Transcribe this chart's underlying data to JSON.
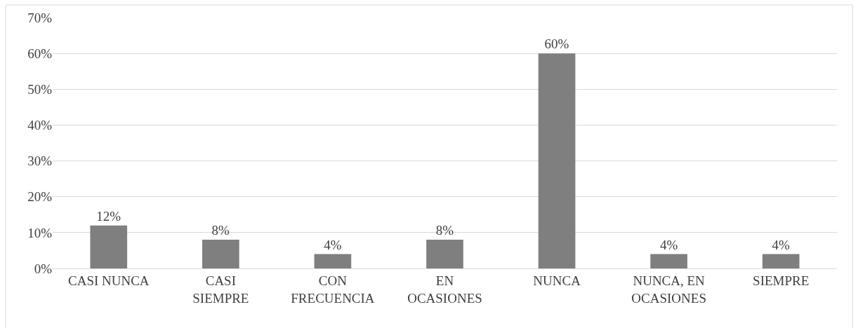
{
  "chart_data": {
    "type": "bar",
    "categories": [
      "CASI NUNCA",
      "CASI SIEMPRE",
      "CON FRECUENCIA",
      "EN OCASIONES",
      "NUNCA",
      "NUNCA, EN OCASIONES",
      "SIEMPRE"
    ],
    "values": [
      12,
      8,
      4,
      8,
      60,
      4,
      4
    ],
    "value_labels": [
      "12%",
      "8%",
      "4%",
      "8%",
      "60%",
      "4%",
      "4%"
    ],
    "color": "#7f7f7f",
    "ylim": [
      0,
      70
    ],
    "yticks": [
      {
        "value": 0,
        "label": "0%"
      },
      {
        "value": 10,
        "label": "10%"
      },
      {
        "value": 20,
        "label": "20%"
      },
      {
        "value": 30,
        "label": "30%"
      },
      {
        "value": 40,
        "label": "40%"
      },
      {
        "value": 50,
        "label": "50%"
      },
      {
        "value": 60,
        "label": "60%"
      },
      {
        "value": 70,
        "label": "70%"
      }
    ],
    "grid": "y",
    "legend": false
  }
}
